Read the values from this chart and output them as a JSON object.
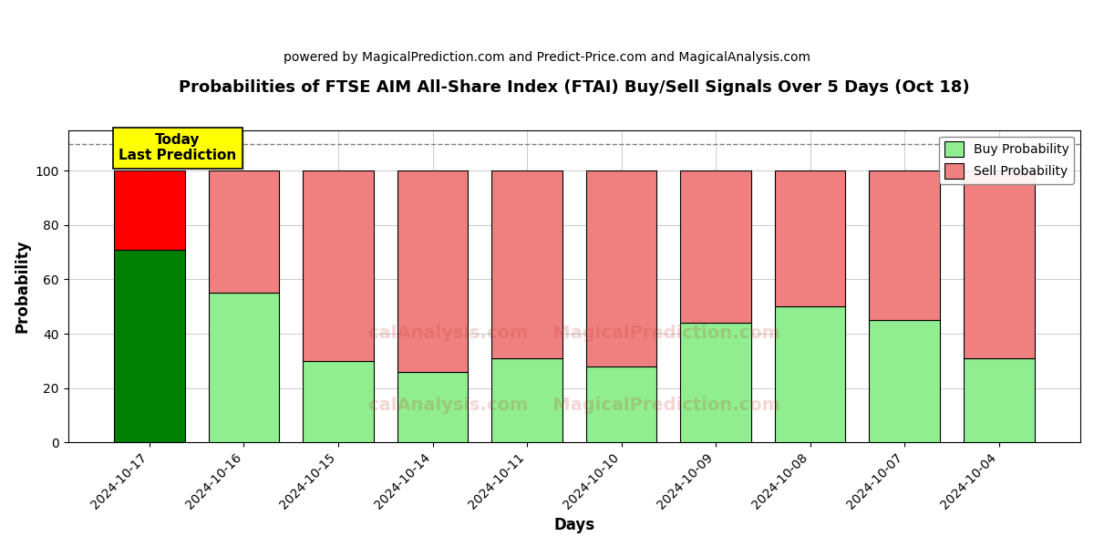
{
  "title": "Probabilities of FTSE AIM All-Share Index (FTAI) Buy/Sell Signals Over 5 Days (Oct 18)",
  "subtitle": "powered by MagicalPrediction.com and Predict-Price.com and MagicalAnalysis.com",
  "xlabel": "Days",
  "ylabel": "Probability",
  "categories": [
    "2024-10-17",
    "2024-10-16",
    "2024-10-15",
    "2024-10-14",
    "2024-10-11",
    "2024-10-10",
    "2024-10-09",
    "2024-10-08",
    "2024-10-07",
    "2024-10-04"
  ],
  "buy_values": [
    71,
    55,
    30,
    26,
    31,
    28,
    44,
    50,
    45,
    31
  ],
  "sell_values": [
    29,
    45,
    70,
    74,
    69,
    72,
    56,
    50,
    55,
    69
  ],
  "today_buy_color": "#008000",
  "today_sell_color": "#FF0000",
  "buy_color": "#90EE90",
  "sell_color": "#F08080",
  "today_label_bg": "#FFFF00",
  "dashed_line_y": 110,
  "ylim": [
    0,
    115
  ],
  "yticks": [
    0,
    20,
    40,
    60,
    80,
    100
  ],
  "watermark_lines": [
    "calAnalysis.com    MagicalPrediction.com",
    "calAnalysis.com    MagicalPrediction.com"
  ],
  "background_color": "#ffffff",
  "grid_color": "#cccccc",
  "bar_width": 0.75
}
